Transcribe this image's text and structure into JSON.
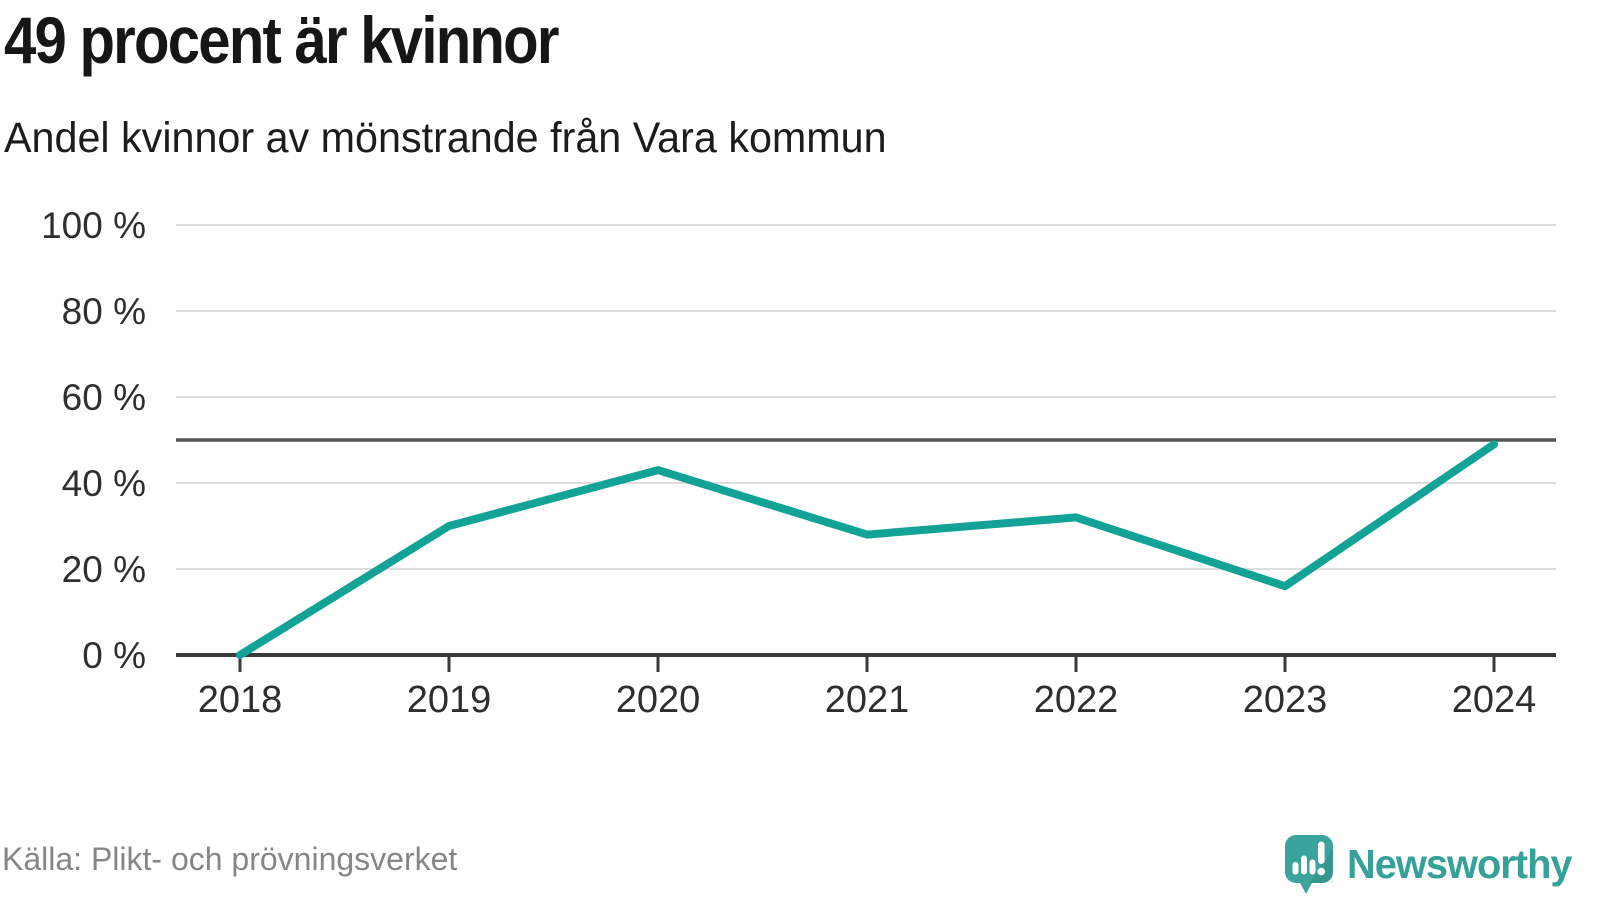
{
  "header": {
    "title": "49 procent är kvinnor",
    "subtitle": "Andel kvinnor av mönstrande från Vara kommun"
  },
  "footer": {
    "source": "Källa: Plikt- och prövningsverket",
    "brand": "Newsworthy"
  },
  "chart_data": {
    "type": "line",
    "title": "49 procent är kvinnor",
    "subtitle": "Andel kvinnor av mönstrande från Vara kommun",
    "categories": [
      "2018",
      "2019",
      "2020",
      "2021",
      "2022",
      "2023",
      "2024"
    ],
    "series": [
      {
        "name": "Andel kvinnor av mönstrande",
        "values": [
          0,
          30,
          43,
          28,
          32,
          16,
          49
        ]
      }
    ],
    "unit": "%",
    "ylim": [
      0,
      100
    ],
    "yticks": [
      0,
      20,
      40,
      60,
      80,
      100
    ],
    "ytick_labels": [
      "0 %",
      "20 %",
      "40 %",
      "60 %",
      "80 %",
      "100 %"
    ],
    "reference_line": {
      "value": 50
    },
    "grid": true,
    "legend": "none",
    "line_color": "#12a296",
    "colors": {
      "grid": "#dedede",
      "axis": "#3a3a3a",
      "reference": "#555555",
      "tick_text": "#2e2e2e"
    }
  }
}
